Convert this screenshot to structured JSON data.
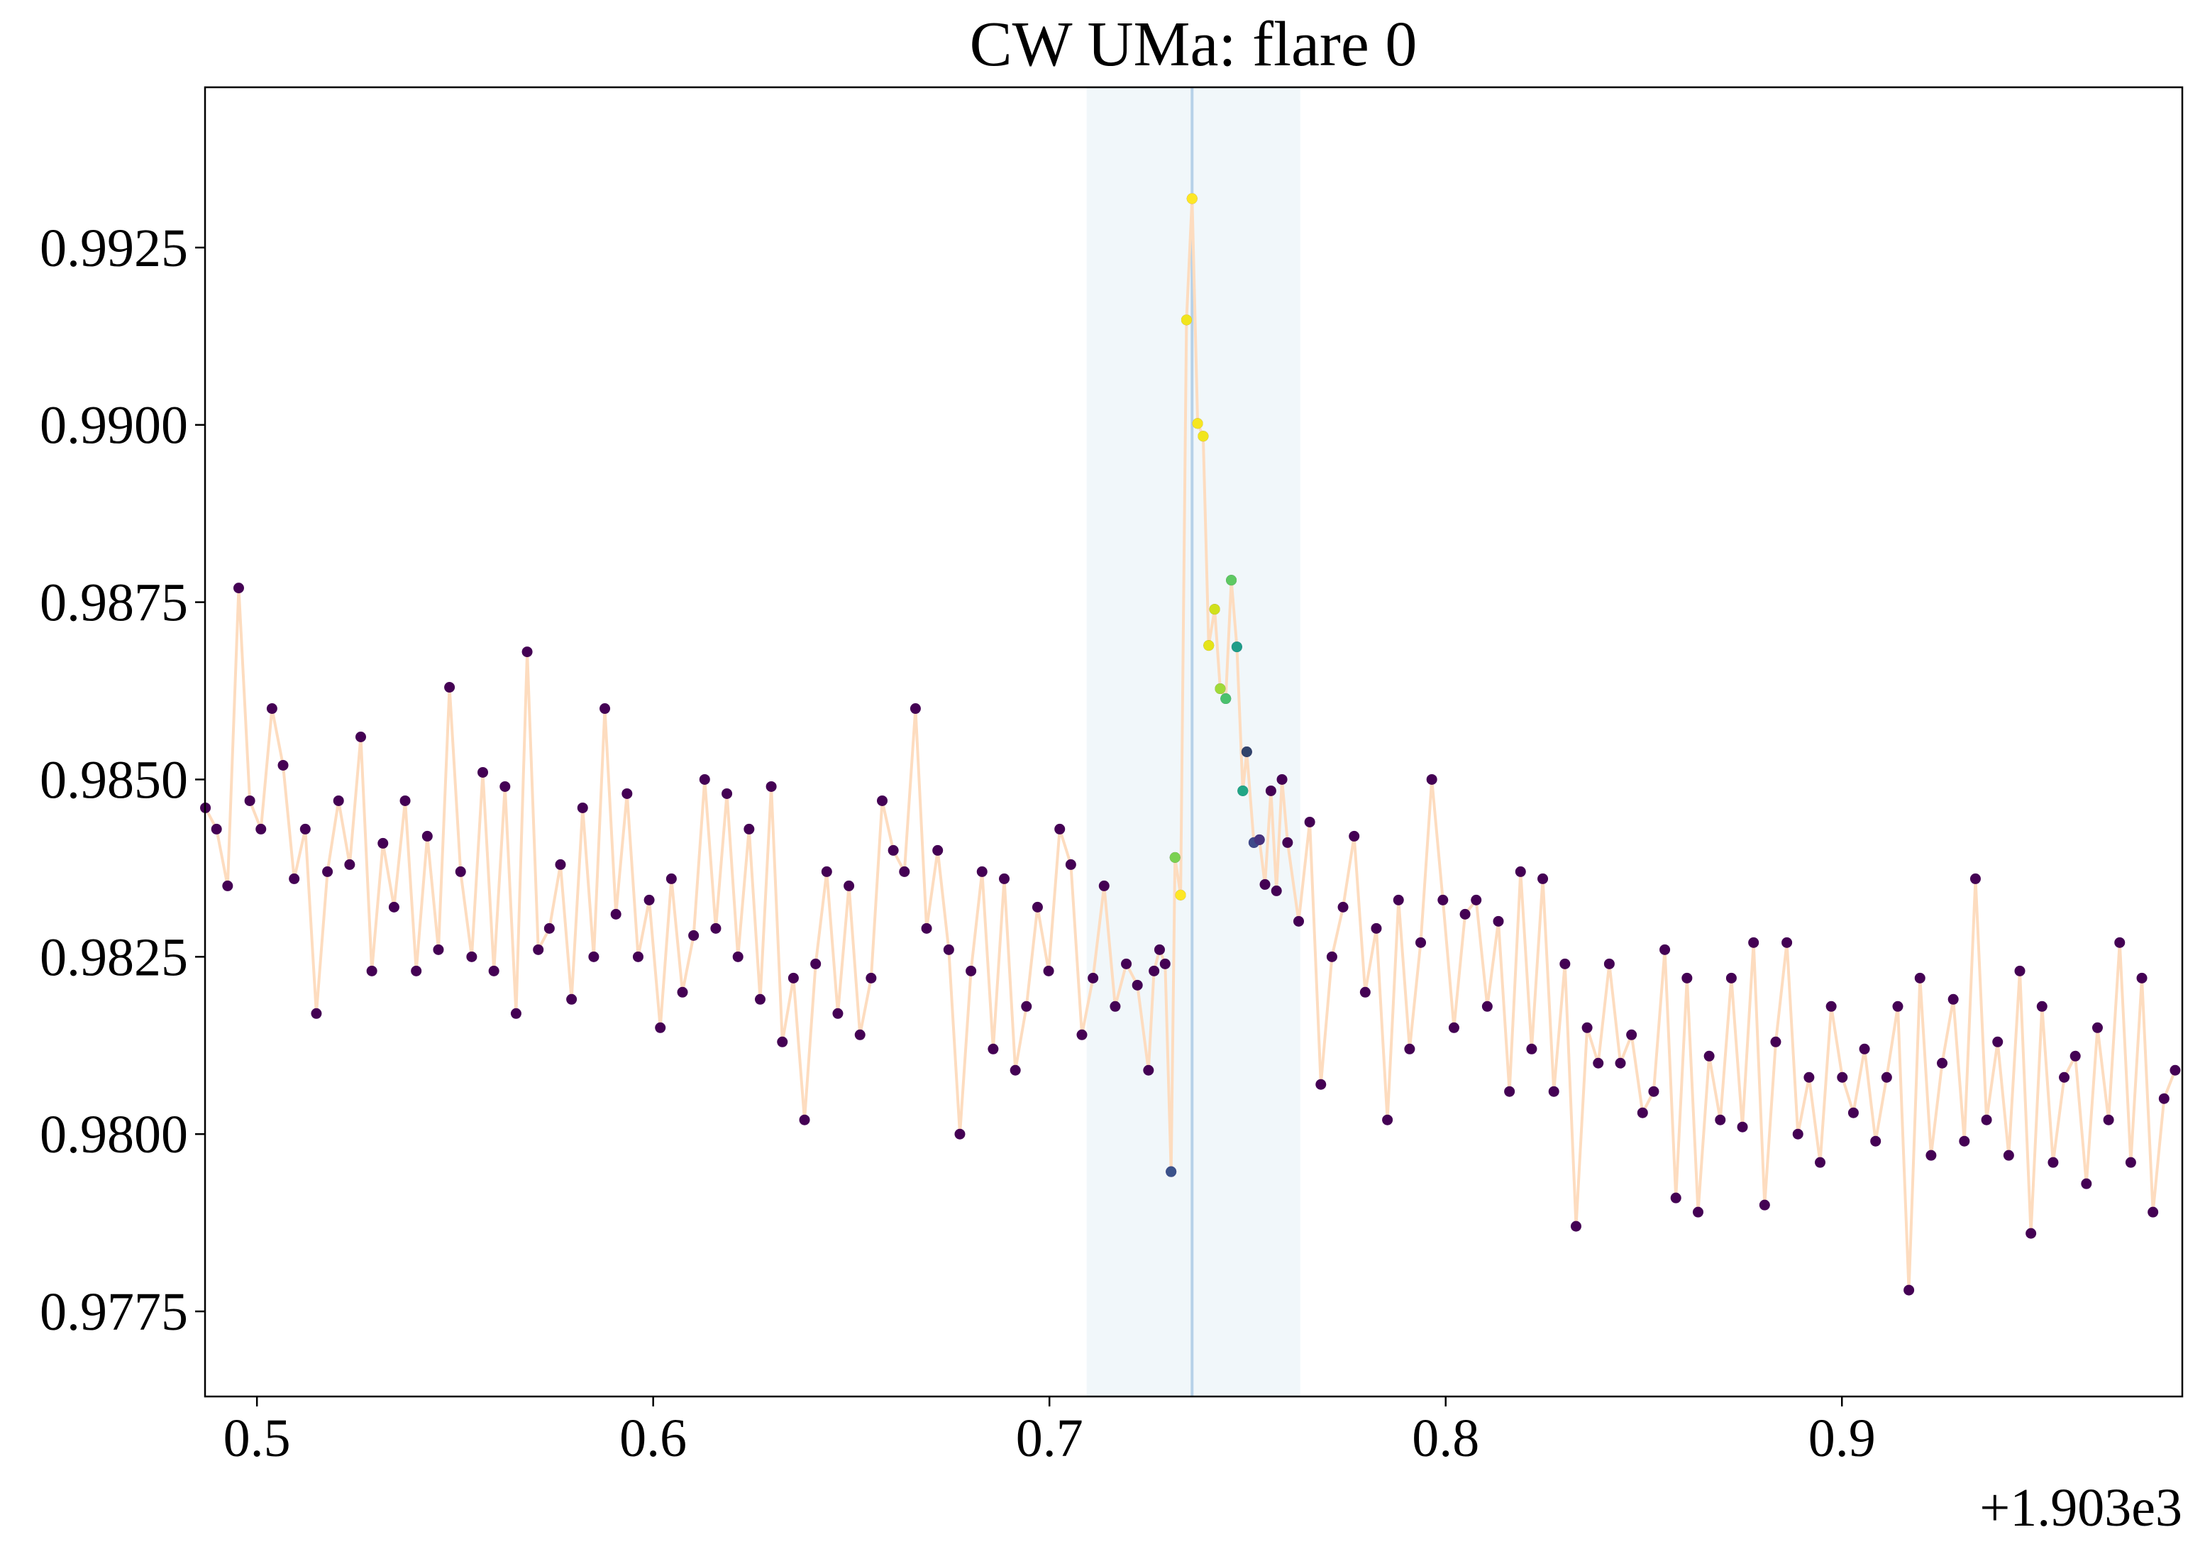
{
  "chart_data": {
    "type": "line",
    "title": "CW UMa: flare 0",
    "x_offset_label": "+1.903e3",
    "xlim": [
      0.4869,
      0.9859
    ],
    "ylim": [
      0.9763,
      0.99476
    ],
    "xticks": [
      0.5,
      0.6,
      0.7,
      0.8,
      0.9
    ],
    "yticks": [
      0.9775,
      {
        "value": 0.98,
        "label": "0.9800"
      },
      0.9825,
      {
        "value": 0.985,
        "label": "0.9850"
      },
      0.9875,
      {
        "value": 0.99,
        "label": "0.9900"
      },
      0.9925
    ],
    "span": [
      0.7094,
      0.7633
    ],
    "span_color": "#f1f7fa",
    "vline": 0.736,
    "vline_color": "#b6d1e8",
    "series": [
      {
        "color": "#fddcbf",
        "marker_color": "#440154",
        "x": [
          0.487,
          0.4898,
          0.4926,
          0.4954,
          0.4982,
          0.501,
          0.5038,
          0.5066,
          0.5094,
          0.5122,
          0.515,
          0.5178,
          0.5206,
          0.5234,
          0.5262,
          0.529,
          0.5318,
          0.5346,
          0.5374,
          0.5402,
          0.543,
          0.5458,
          0.5486,
          0.5514,
          0.5542,
          0.557,
          0.5598,
          0.5626,
          0.5654,
          0.5682,
          0.571,
          0.5738,
          0.5766,
          0.5794,
          0.5822,
          0.585,
          0.5878,
          0.5906,
          0.5934,
          0.5962,
          0.599,
          0.6018,
          0.6046,
          0.6074,
          0.6102,
          0.613,
          0.6158,
          0.6186,
          0.6214,
          0.6242,
          0.627,
          0.6298,
          0.6326,
          0.6354,
          0.6382,
          0.641,
          0.6438,
          0.6466,
          0.6494,
          0.6522,
          0.655,
          0.6578,
          0.6606,
          0.6634,
          0.6662,
          0.669,
          0.6718,
          0.6746,
          0.6774,
          0.6802,
          0.683,
          0.6858,
          0.6886,
          0.6914,
          0.6942,
          0.697,
          0.6998,
          0.7026,
          0.7054,
          0.7082,
          0.711,
          0.7138,
          0.7166,
          0.7194,
          0.7222,
          0.725,
          0.7264,
          0.7278,
          0.7292,
          0.7307,
          0.7317,
          0.7331,
          0.7346,
          0.736,
          0.7374,
          0.7388,
          0.7402,
          0.7417,
          0.7431,
          0.7445,
          0.7459,
          0.7473,
          0.7488,
          0.7498,
          0.7516,
          0.753,
          0.7544,
          0.7559,
          0.7573,
          0.7587,
          0.7601,
          0.7629,
          0.7657,
          0.7685,
          0.7713,
          0.7741,
          0.7769,
          0.7797,
          0.7825,
          0.7853,
          0.7881,
          0.7909,
          0.7937,
          0.7965,
          0.7993,
          0.8021,
          0.8049,
          0.8077,
          0.8105,
          0.8133,
          0.8161,
          0.8189,
          0.8217,
          0.8245,
          0.8273,
          0.8301,
          0.8329,
          0.8357,
          0.8385,
          0.8413,
          0.8441,
          0.8469,
          0.8497,
          0.8525,
          0.8553,
          0.8581,
          0.8609,
          0.8637,
          0.8665,
          0.8693,
          0.8721,
          0.8749,
          0.8777,
          0.8805,
          0.8833,
          0.8861,
          0.8889,
          0.8917,
          0.8945,
          0.8973,
          0.9001,
          0.9029,
          0.9057,
          0.9085,
          0.9113,
          0.9141,
          0.9169,
          0.9197,
          0.9225,
          0.9253,
          0.9281,
          0.9309,
          0.9337,
          0.9365,
          0.9393,
          0.9421,
          0.9449,
          0.9477,
          0.9505,
          0.9533,
          0.9561,
          0.9589,
          0.9617,
          0.9645,
          0.9673,
          0.9701,
          0.9729,
          0.9757,
          0.9785,
          0.9813,
          0.9841
        ],
        "values": [
          0.9846,
          0.9843,
          0.9835,
          0.9877,
          0.9847,
          0.9843,
          0.986,
          0.9852,
          0.9836,
          0.9843,
          0.9817,
          0.9837,
          0.9847,
          0.9838,
          0.9856,
          0.9823,
          0.9841,
          0.9832,
          0.9847,
          0.9823,
          0.9842,
          0.9826,
          0.9863,
          0.9837,
          0.9825,
          0.9851,
          0.9823,
          0.9849,
          0.9817,
          0.9868,
          0.9826,
          0.9829,
          0.9838,
          0.9819,
          0.9846,
          0.9825,
          0.986,
          0.9831,
          0.9848,
          0.9825,
          0.9833,
          0.9815,
          0.9836,
          0.982,
          0.9828,
          0.985,
          0.9829,
          0.9848,
          0.9825,
          0.9843,
          0.9819,
          0.9849,
          0.9813,
          0.9822,
          0.9802,
          0.9824,
          0.9837,
          0.9817,
          0.9835,
          0.9814,
          0.9822,
          0.9847,
          0.984,
          0.9837,
          0.986,
          0.9829,
          0.984,
          0.9826,
          0.98,
          0.9823,
          0.9837,
          0.9812,
          0.9836,
          0.9809,
          0.9818,
          0.9832,
          0.9823,
          0.9843,
          0.9838,
          0.9814,
          0.9822,
          0.9835,
          0.9818,
          0.9824,
          0.9821,
          0.9809,
          0.9823,
          0.9826,
          0.9824,
          0.97947,
          0.9839,
          0.98337,
          0.99148,
          0.99319,
          0.99002,
          0.98984,
          0.98689,
          0.9874,
          0.98628,
          0.98614,
          0.98781,
          0.98687,
          0.98484,
          0.98539,
          0.98411,
          0.98415,
          0.98352,
          0.98484,
          0.98343,
          0.985,
          0.98411,
          0.983,
          0.9844,
          0.9807,
          0.9825,
          0.9832,
          0.9842,
          0.982,
          0.9829,
          0.9802,
          0.9833,
          0.9812,
          0.9827,
          0.985,
          0.9833,
          0.9815,
          0.9831,
          0.9833,
          0.9818,
          0.983,
          0.9806,
          0.9837,
          0.9812,
          0.9836,
          0.9806,
          0.9824,
          0.9787,
          0.9815,
          0.981,
          0.9824,
          0.981,
          0.9814,
          0.9803,
          0.9806,
          0.9826,
          0.9791,
          0.9822,
          0.9789,
          0.9811,
          0.9802,
          0.9822,
          0.9801,
          0.9827,
          0.979,
          0.9813,
          0.9827,
          0.98,
          0.9808,
          0.9796,
          0.9818,
          0.9808,
          0.9803,
          0.9812,
          0.9799,
          0.9808,
          0.9818,
          0.9778,
          0.9822,
          0.9797,
          0.981,
          0.9819,
          0.9799,
          0.9836,
          0.9802,
          0.9813,
          0.9797,
          0.9823,
          0.9786,
          0.9818,
          0.9796,
          0.9808,
          0.9811,
          0.9793,
          0.9815,
          0.9802,
          0.9827,
          0.9796,
          0.9822,
          0.9789,
          0.9805,
          0.9809
        ]
      }
    ],
    "flare_points": {
      "x": [
        0.7307,
        0.7317,
        0.7331,
        0.7346,
        0.736,
        0.7374,
        0.7388,
        0.7402,
        0.7417,
        0.7431,
        0.7445,
        0.7459,
        0.7473,
        0.7488,
        0.7498,
        0.7516,
        0.753
      ],
      "values": [
        0.97947,
        0.9839,
        0.98337,
        0.99148,
        0.99319,
        0.99002,
        0.98984,
        0.98689,
        0.9874,
        0.98628,
        0.98614,
        0.98781,
        0.98687,
        0.98484,
        0.98539,
        0.98411,
        0.98415
      ],
      "colors": [
        "#3b528b",
        "#7ad151",
        "#fde725",
        "#f1e51d",
        "#fde725",
        "#f6e620",
        "#f1e51d",
        "#e5e419",
        "#d0e11c",
        "#a0da39",
        "#4ac16d",
        "#5ec962",
        "#1f9e89",
        "#21a685",
        "#31446b",
        "#3e4989",
        "#46337e"
      ]
    }
  }
}
